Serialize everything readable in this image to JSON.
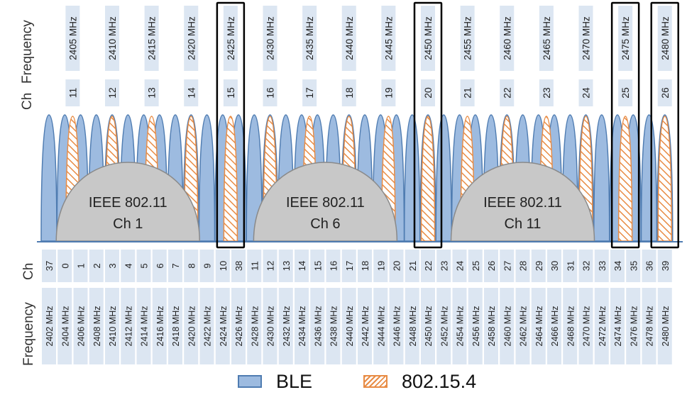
{
  "top_axis": {
    "ch_label": "Ch",
    "frequency_label": "Frequency",
    "channels": [
      {
        "ch": "11",
        "freq": "2405 MHz",
        "highlight": false
      },
      {
        "ch": "12",
        "freq": "2410 MHz",
        "highlight": false
      },
      {
        "ch": "13",
        "freq": "2415 MHz",
        "highlight": false
      },
      {
        "ch": "14",
        "freq": "2420 MHz",
        "highlight": false
      },
      {
        "ch": "15",
        "freq": "2425 MHz",
        "highlight": true
      },
      {
        "ch": "16",
        "freq": "2430 MHz",
        "highlight": false
      },
      {
        "ch": "17",
        "freq": "2435 MHz",
        "highlight": false
      },
      {
        "ch": "18",
        "freq": "2440 MHz",
        "highlight": false
      },
      {
        "ch": "19",
        "freq": "2445 MHz",
        "highlight": false
      },
      {
        "ch": "20",
        "freq": "2450 MHz",
        "highlight": true
      },
      {
        "ch": "21",
        "freq": "2455 MHz",
        "highlight": false
      },
      {
        "ch": "22",
        "freq": "2460 MHz",
        "highlight": false
      },
      {
        "ch": "23",
        "freq": "2465 MHz",
        "highlight": false
      },
      {
        "ch": "24",
        "freq": "2470 MHz",
        "highlight": false
      },
      {
        "ch": "25",
        "freq": "2475 MHz",
        "highlight": true
      },
      {
        "ch": "26",
        "freq": "2480 MHz",
        "highlight": true
      }
    ]
  },
  "bottom_axis": {
    "ch_label": "Ch",
    "frequency_label": "Frequency",
    "channels": [
      {
        "ch": "37",
        "freq": "2402 MHz"
      },
      {
        "ch": "0",
        "freq": "2404 MHz"
      },
      {
        "ch": "1",
        "freq": "2406 MHz"
      },
      {
        "ch": "2",
        "freq": "2408 MHz"
      },
      {
        "ch": "3",
        "freq": "2410 MHz"
      },
      {
        "ch": "4",
        "freq": "2412 MHz"
      },
      {
        "ch": "5",
        "freq": "2414 MHz"
      },
      {
        "ch": "6",
        "freq": "2416 MHz"
      },
      {
        "ch": "7",
        "freq": "2418 MHz"
      },
      {
        "ch": "8",
        "freq": "2420 MHz"
      },
      {
        "ch": "9",
        "freq": "2422 MHz"
      },
      {
        "ch": "10",
        "freq": "2424 MHz"
      },
      {
        "ch": "38",
        "freq": "2426 MHz"
      },
      {
        "ch": "11",
        "freq": "2428 MHz"
      },
      {
        "ch": "12",
        "freq": "2430 MHz"
      },
      {
        "ch": "13",
        "freq": "2432 MHz"
      },
      {
        "ch": "14",
        "freq": "2434 MHz"
      },
      {
        "ch": "15",
        "freq": "2436 MHz"
      },
      {
        "ch": "16",
        "freq": "2438 MHz"
      },
      {
        "ch": "17",
        "freq": "2440 MHz"
      },
      {
        "ch": "18",
        "freq": "2442 MHz"
      },
      {
        "ch": "19",
        "freq": "2444 MHz"
      },
      {
        "ch": "20",
        "freq": "2446 MHz"
      },
      {
        "ch": "21",
        "freq": "2448 MHz"
      },
      {
        "ch": "22",
        "freq": "2450 MHz"
      },
      {
        "ch": "23",
        "freq": "2452 MHz"
      },
      {
        "ch": "24",
        "freq": "2454 MHz"
      },
      {
        "ch": "25",
        "freq": "2456 MHz"
      },
      {
        "ch": "26",
        "freq": "2458 MHz"
      },
      {
        "ch": "27",
        "freq": "2460 MHz"
      },
      {
        "ch": "28",
        "freq": "2462 MHz"
      },
      {
        "ch": "29",
        "freq": "2464 MHz"
      },
      {
        "ch": "30",
        "freq": "2466 MHz"
      },
      {
        "ch": "31",
        "freq": "2468 MHz"
      },
      {
        "ch": "32",
        "freq": "2470 MHz"
      },
      {
        "ch": "33",
        "freq": "2472 MHz"
      },
      {
        "ch": "34",
        "freq": "2474 MHz"
      },
      {
        "ch": "35",
        "freq": "2476 MHz"
      },
      {
        "ch": "36",
        "freq": "2478 MHz"
      },
      {
        "ch": "39",
        "freq": "2480 MHz"
      }
    ]
  },
  "wifi_channels": [
    {
      "line1": "IEEE 802.11",
      "line2": "Ch 1",
      "center_mhz": 2412
    },
    {
      "line1": "IEEE 802.11",
      "line2": "Ch 6",
      "center_mhz": 2437
    },
    {
      "line1": "IEEE 802.11",
      "line2": "Ch 11",
      "center_mhz": 2462
    }
  ],
  "legend": {
    "ble_label": "BLE",
    "zigbee_label": "802.15.4"
  },
  "colors": {
    "ble_fill": "#9dbbe0",
    "ble_stroke": "#4f7cb1",
    "zigbee_stroke": "#e88c45",
    "zigbee_fill": "#ffffff",
    "wifi_fill": "#c8c8c8",
    "wifi_stroke": "#8a8a8a",
    "label_box": "#dce6f2",
    "highlight_border": "#000000"
  }
}
